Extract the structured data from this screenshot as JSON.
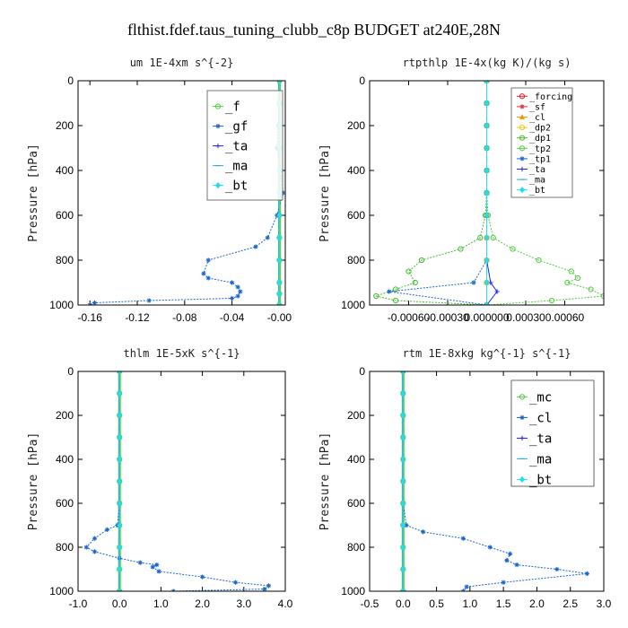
{
  "figure": {
    "title": "flthist.fdef.taus_tuning_clubb_c8p  BUDGET at240E,28N"
  },
  "chart_data": [
    {
      "type": "line",
      "title": "um  1E-4xm s^{-2}",
      "ylabel": "Pressure [hPa]",
      "xlabel": "",
      "xlim": [
        -0.17,
        0.005
      ],
      "ylim": [
        1000,
        0
      ],
      "xticks": [
        -0.16,
        -0.12,
        -0.08,
        -0.04,
        0.0
      ],
      "xtick_labels": [
        "-0.16",
        "-0.12",
        "-0.08",
        "-0.04",
        "-0.00"
      ],
      "yticks": [
        0,
        200,
        400,
        600,
        800,
        1000
      ],
      "legend_position": "top-right",
      "series": [
        {
          "name": "_f",
          "color": "#55cc44",
          "marker": "circle",
          "x": [
            0.0,
            0.0,
            0.0,
            0.0,
            0.0,
            0.0,
            0.0,
            0.0,
            0.0,
            0.0,
            0.0,
            0.0
          ],
          "y": [
            0,
            100,
            200,
            300,
            400,
            500,
            600,
            700,
            800,
            900,
            950,
            1000
          ]
        },
        {
          "name": "_gf",
          "color": "#1a66cc",
          "marker": "star",
          "x": [
            0.0,
            0.0,
            -0.001,
            -0.002,
            0.001,
            0.003,
            -0.002,
            -0.01,
            -0.02,
            -0.06,
            -0.064,
            -0.06,
            -0.04,
            -0.035,
            -0.033,
            -0.035,
            -0.04,
            -0.11,
            -0.156,
            -0.16
          ],
          "y": [
            0,
            100,
            200,
            300,
            400,
            500,
            600,
            700,
            740,
            800,
            860,
            880,
            900,
            920,
            940,
            960,
            970,
            980,
            990,
            1000
          ]
        },
        {
          "name": "_ta",
          "color": "#2222ee",
          "marker": "plus",
          "x": [
            0.0,
            0.0,
            0.0,
            0.0,
            0.0,
            0.0,
            0.0,
            0.0,
            0.0,
            0.0,
            0.0,
            0.0
          ],
          "y": [
            0,
            100,
            200,
            300,
            400,
            500,
            600,
            700,
            800,
            900,
            950,
            1000
          ]
        },
        {
          "name": "_ma",
          "color": "#33aadd",
          "marker": "dash",
          "x": [
            0.0,
            0.0,
            0.0,
            0.0,
            0.0,
            0.0,
            0.0,
            0.0,
            0.0,
            0.0,
            0.0,
            0.0
          ],
          "y": [
            0,
            100,
            200,
            300,
            400,
            500,
            600,
            700,
            800,
            900,
            950,
            1000
          ]
        },
        {
          "name": "_bt",
          "color": "#22ddee",
          "marker": "diamond",
          "x": [
            0.0,
            0.0,
            0.0,
            0.0,
            0.0,
            0.0,
            0.0,
            0.0,
            0.0,
            0.0,
            0.0,
            0.0
          ],
          "y": [
            0,
            100,
            200,
            300,
            400,
            500,
            600,
            700,
            800,
            900,
            950,
            1000
          ]
        }
      ]
    },
    {
      "type": "line",
      "title": "rtpthlp  1E-4x(kg K)/(kg s)",
      "ylabel": "Pressure [hPa]",
      "xlabel": "",
      "xlim": [
        -0.0009,
        0.0009
      ],
      "ylim": [
        1000,
        0
      ],
      "xticks": [
        -0.0006,
        -0.0003,
        0.0,
        0.0003,
        0.0006
      ],
      "xtick_labels": [
        "-0.00060",
        "-0.00030",
        "0.000000",
        "0.00030",
        "0.00060"
      ],
      "yticks": [
        0,
        200,
        400,
        600,
        800,
        1000
      ],
      "legend_position": "top-right",
      "series": [
        {
          "name": "_forcing",
          "color": "#dd2222",
          "marker": "circle",
          "x": [
            0.0,
            0.0,
            0.0,
            0.0,
            0.0,
            0.0,
            0.0,
            0.0,
            0.0,
            0.0,
            0.0
          ],
          "y": [
            0,
            100,
            200,
            300,
            400,
            500,
            600,
            700,
            800,
            900,
            1000
          ]
        },
        {
          "name": "_sf",
          "color": "#dd3333",
          "marker": "star",
          "x": [
            0.0,
            0.0,
            0.0,
            0.0,
            0.0,
            0.0,
            0.0,
            0.0,
            0.0,
            0.0,
            0.0
          ],
          "y": [
            0,
            100,
            200,
            300,
            400,
            500,
            600,
            700,
            800,
            900,
            1000
          ]
        },
        {
          "name": "_cl",
          "color": "#ee9900",
          "marker": "triangle",
          "x": [
            0.0,
            0.0,
            0.0,
            0.0,
            0.0,
            0.0,
            0.0,
            0.0,
            0.0,
            0.0,
            0.0
          ],
          "y": [
            0,
            100,
            200,
            300,
            400,
            500,
            600,
            700,
            800,
            900,
            1000
          ]
        },
        {
          "name": "_dp2",
          "color": "#eecc00",
          "marker": "circle",
          "x": [
            0.0,
            0.0,
            0.0,
            0.0,
            0.0,
            0.0,
            0.0,
            0.0,
            0.0,
            0.0,
            0.0
          ],
          "y": [
            0,
            100,
            200,
            300,
            400,
            500,
            600,
            700,
            800,
            900,
            1000
          ]
        },
        {
          "name": "_dp1",
          "color": "#44bb33",
          "marker": "circle",
          "x": [
            0.0,
            0.0,
            0.0,
            0.0,
            0.0,
            0.0,
            -1e-05,
            -5e-05,
            -0.0002,
            -0.0005,
            -0.0006,
            -0.00055,
            -0.0007,
            -0.00085,
            -0.0007,
            0.0
          ],
          "y": [
            0,
            100,
            200,
            300,
            400,
            500,
            600,
            700,
            750,
            800,
            850,
            900,
            930,
            960,
            980,
            1000
          ]
        },
        {
          "name": "_tp2",
          "color": "#55cc44",
          "marker": "circle",
          "x": [
            0.0,
            0.0,
            0.0,
            0.0,
            0.0,
            0.0,
            1e-05,
            5e-05,
            0.0002,
            0.0004,
            0.00065,
            0.0007,
            0.00062,
            0.0008,
            0.0009,
            0.0005,
            0.0
          ],
          "y": [
            0,
            100,
            200,
            300,
            400,
            500,
            600,
            700,
            750,
            800,
            850,
            880,
            900,
            930,
            960,
            980,
            1000
          ]
        },
        {
          "name": "_tp1",
          "color": "#1a66cc",
          "marker": "star",
          "x": [
            0.0,
            0.0,
            0.0,
            0.0,
            0.0,
            0.0,
            0.0,
            0.0,
            0.0,
            -0.0001,
            -0.00075,
            0.0
          ],
          "y": [
            0,
            100,
            200,
            300,
            400,
            500,
            600,
            700,
            800,
            900,
            940,
            1000
          ]
        },
        {
          "name": "_ta",
          "color": "#2222ee",
          "marker": "plus",
          "x": [
            0.0,
            0.0,
            0.0,
            0.0,
            0.0,
            0.0,
            0.0,
            0.0,
            0.0,
            3e-05,
            8e-05,
            0.0
          ],
          "y": [
            0,
            100,
            200,
            300,
            400,
            500,
            600,
            700,
            800,
            900,
            940,
            1000
          ]
        },
        {
          "name": "_ma",
          "color": "#33aadd",
          "marker": "dash",
          "x": [
            0.0,
            0.0,
            0.0,
            0.0,
            0.0,
            0.0,
            0.0,
            0.0,
            0.0,
            0.0,
            0.0
          ],
          "y": [
            0,
            100,
            200,
            300,
            400,
            500,
            600,
            700,
            800,
            900,
            1000
          ]
        },
        {
          "name": "_bt",
          "color": "#22ddee",
          "marker": "diamond",
          "x": [
            0.0,
            0.0,
            0.0,
            0.0,
            0.0,
            0.0,
            0.0,
            0.0,
            0.0,
            0.0,
            0.0
          ],
          "y": [
            0,
            100,
            200,
            300,
            400,
            500,
            600,
            700,
            800,
            900,
            1000
          ]
        }
      ]
    },
    {
      "type": "line",
      "title": "thlm  1E-5xK s^{-1}",
      "ylabel": "Pressure [hPa]",
      "xlabel": "",
      "xlim": [
        -1.0,
        4.0
      ],
      "ylim": [
        1000,
        0
      ],
      "xticks": [
        -1.0,
        0.0,
        1.0,
        2.0,
        3.0,
        4.0
      ],
      "xtick_labels": [
        "-1.0",
        "0.0",
        "1.0",
        "2.0",
        "3.0",
        "4.0"
      ],
      "yticks": [
        0,
        200,
        400,
        600,
        800,
        1000
      ],
      "legend_position": "top-right",
      "series": [
        {
          "name": "_mc",
          "color": "#55cc44",
          "marker": "circle",
          "x": [
            0.0,
            0.0,
            0.0,
            0.0,
            0.0,
            0.0,
            0.0,
            0.0,
            0.0,
            0.0,
            0.0
          ],
          "y": [
            0,
            100,
            200,
            300,
            400,
            500,
            600,
            700,
            800,
            900,
            1000
          ]
        },
        {
          "name": "_cl",
          "color": "#1a66cc",
          "marker": "star",
          "x": [
            0.0,
            0.0,
            0.0,
            0.0,
            0.0,
            0.0,
            0.0,
            -0.05,
            -0.3,
            -0.6,
            -0.8,
            -0.6,
            0.0,
            0.5,
            0.9,
            0.8,
            0.95,
            2.0,
            2.8,
            3.6,
            3.5,
            1.3
          ],
          "y": [
            0,
            100,
            200,
            300,
            400,
            500,
            600,
            700,
            720,
            760,
            800,
            820,
            850,
            870,
            880,
            890,
            910,
            935,
            960,
            975,
            990,
            1000
          ]
        },
        {
          "name": "_ta",
          "color": "#2222ee",
          "marker": "plus",
          "x": [
            0.0,
            0.0,
            0.0,
            0.0,
            0.0,
            0.0,
            0.0,
            0.0,
            0.0,
            0.0,
            0.0
          ],
          "y": [
            0,
            100,
            200,
            300,
            400,
            500,
            600,
            700,
            800,
            900,
            1000
          ]
        },
        {
          "name": "_ma",
          "color": "#33aadd",
          "marker": "dash",
          "x": [
            0.0,
            0.0,
            0.0,
            0.0,
            0.0,
            0.0,
            0.0,
            0.0,
            0.0,
            0.0,
            0.0
          ],
          "y": [
            0,
            100,
            200,
            300,
            400,
            500,
            600,
            700,
            800,
            900,
            1000
          ]
        },
        {
          "name": "_bt",
          "color": "#22ddee",
          "marker": "diamond",
          "x": [
            0.0,
            0.0,
            0.0,
            0.0,
            0.0,
            0.0,
            0.0,
            0.0,
            0.0,
            0.0,
            0.0
          ],
          "y": [
            0,
            100,
            200,
            300,
            400,
            500,
            600,
            700,
            800,
            900,
            1000
          ]
        }
      ]
    },
    {
      "type": "line",
      "title": "rtm  1E-8xkg kg^{-1} s^{-1}",
      "ylabel": "Pressure [hPa]",
      "xlabel": "",
      "xlim": [
        -0.5,
        3.0
      ],
      "ylim": [
        1000,
        0
      ],
      "xticks": [
        -0.5,
        0.0,
        0.5,
        1.0,
        1.5,
        2.0,
        2.5,
        3.0
      ],
      "xtick_labels": [
        "-0.5",
        "0.0",
        "0.5",
        "1.0",
        "1.5",
        "2.0",
        "2.5",
        "3.0"
      ],
      "yticks": [
        0,
        200,
        400,
        600,
        800,
        1000
      ],
      "legend_position": "top-right",
      "series": [
        {
          "name": "_mc",
          "color": "#55cc44",
          "marker": "circle",
          "x": [
            0.0,
            0.0,
            0.0,
            0.0,
            0.0,
            0.0,
            0.0,
            0.0,
            0.0,
            0.0,
            0.0
          ],
          "y": [
            0,
            100,
            200,
            300,
            400,
            500,
            600,
            700,
            800,
            900,
            1000
          ]
        },
        {
          "name": "_cl",
          "color": "#1a66cc",
          "marker": "star",
          "x": [
            0.0,
            0.0,
            0.0,
            0.0,
            0.0,
            0.0,
            0.0,
            0.05,
            0.3,
            0.9,
            1.3,
            1.6,
            1.55,
            1.7,
            2.3,
            2.75,
            1.5,
            0.95,
            0.9
          ],
          "y": [
            0,
            100,
            200,
            300,
            400,
            500,
            600,
            700,
            730,
            760,
            800,
            830,
            860,
            880,
            900,
            920,
            960,
            980,
            1000
          ]
        },
        {
          "name": "_ta",
          "color": "#2222ee",
          "marker": "plus",
          "x": [
            0.0,
            0.0,
            0.0,
            0.0,
            0.0,
            0.0,
            0.0,
            0.0,
            0.0,
            0.0,
            0.0
          ],
          "y": [
            0,
            100,
            200,
            300,
            400,
            500,
            600,
            700,
            800,
            900,
            1000
          ]
        },
        {
          "name": "_ma",
          "color": "#33aadd",
          "marker": "dash",
          "x": [
            0.0,
            0.0,
            0.0,
            0.0,
            0.0,
            0.0,
            0.0,
            0.0,
            0.0,
            0.0,
            0.0
          ],
          "y": [
            0,
            100,
            200,
            300,
            400,
            500,
            600,
            700,
            800,
            900,
            1000
          ]
        },
        {
          "name": "_bt",
          "color": "#22ddee",
          "marker": "diamond",
          "x": [
            0.0,
            0.0,
            0.0,
            0.0,
            0.0,
            0.0,
            0.0,
            0.0,
            0.0,
            0.0,
            0.0
          ],
          "y": [
            0,
            100,
            200,
            300,
            400,
            500,
            600,
            700,
            800,
            900,
            1000
          ]
        }
      ]
    }
  ]
}
